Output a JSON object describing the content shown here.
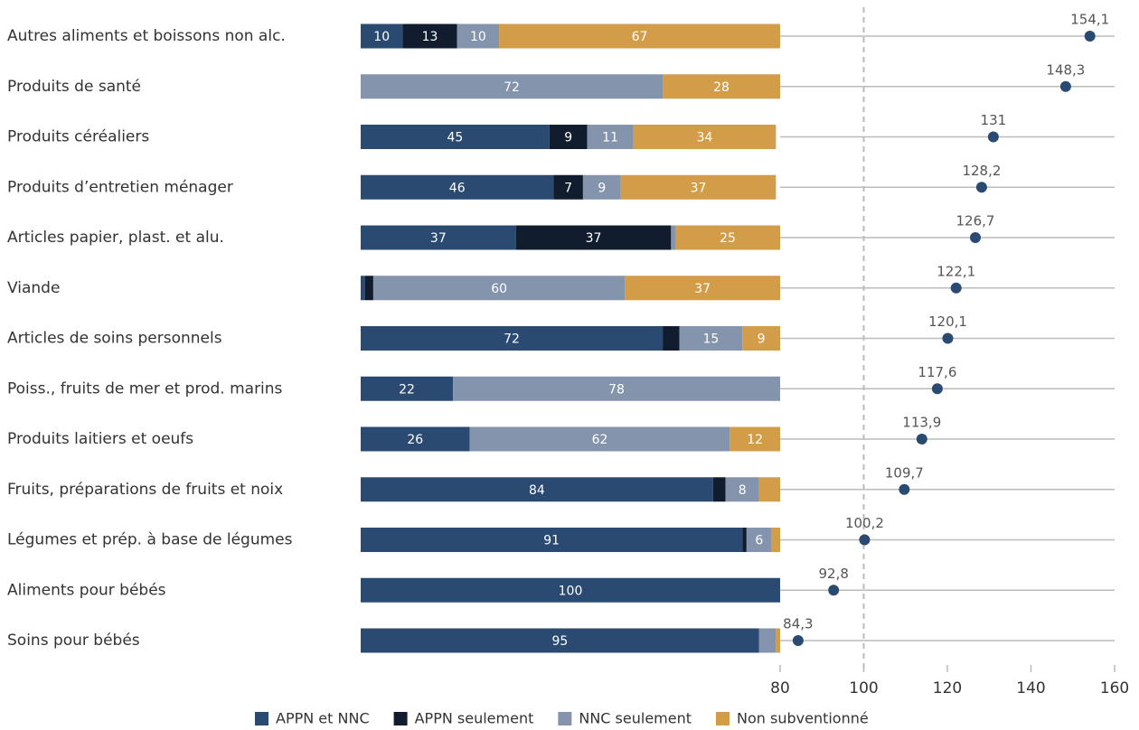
{
  "chart_data": [
    {
      "type": "stacked_bar",
      "categories": [
        "Autres aliments et boissons non alc.",
        "Produits de santé",
        "Produits céréaliers",
        "Produits d’entretien ménager",
        "Articles papier, plast. et alu.",
        "Viande",
        "Articles de soins personnels",
        "Poiss., fruits de mer et prod. marins",
        "Produits laitiers et oeufs",
        "Fruits, préparations de fruits et noix",
        "Légumes et prép. à base de légumes",
        "Aliments pour bébés",
        "Soins pour bébés"
      ],
      "xlim": [
        0,
        100
      ],
      "legend": "bottom",
      "series": [
        {
          "name": "APPN et NNC",
          "color": "#2b4a72",
          "values": [
            10,
            0,
            45,
            46,
            37,
            1,
            72,
            22,
            26,
            84,
            91,
            100,
            95
          ]
        },
        {
          "name": "APPN seulement",
          "color": "#111d2e",
          "values": [
            13,
            0,
            9,
            7,
            37,
            2,
            4,
            0,
            0,
            3,
            1,
            0,
            0
          ]
        },
        {
          "name": "NNC seulement",
          "color": "#8494ac",
          "values": [
            10,
            72,
            11,
            9,
            1,
            60,
            15,
            78,
            62,
            8,
            6,
            0,
            4
          ]
        },
        {
          "name": "Non subventionné",
          "color": "#d39c48",
          "values": [
            67,
            28,
            34,
            37,
            25,
            37,
            9,
            0,
            12,
            5,
            2,
            0,
            1
          ]
        }
      ]
    },
    {
      "type": "dot",
      "values": [
        154.1,
        148.3,
        131,
        128.2,
        126.7,
        122.1,
        120.1,
        117.6,
        113.9,
        109.7,
        100.2,
        92.8,
        84.3
      ],
      "value_labels": [
        "154,1",
        "148,3",
        "131",
        "128,2",
        "126,7",
        "122,1",
        "120,1",
        "117,6",
        "113,9",
        "109,7",
        "100,2",
        "92,8",
        "84,3"
      ],
      "xlim": [
        80,
        160
      ],
      "xticks": [
        80,
        100,
        120,
        140,
        160
      ],
      "reference_line": 100,
      "color": "#2b4a72"
    }
  ]
}
